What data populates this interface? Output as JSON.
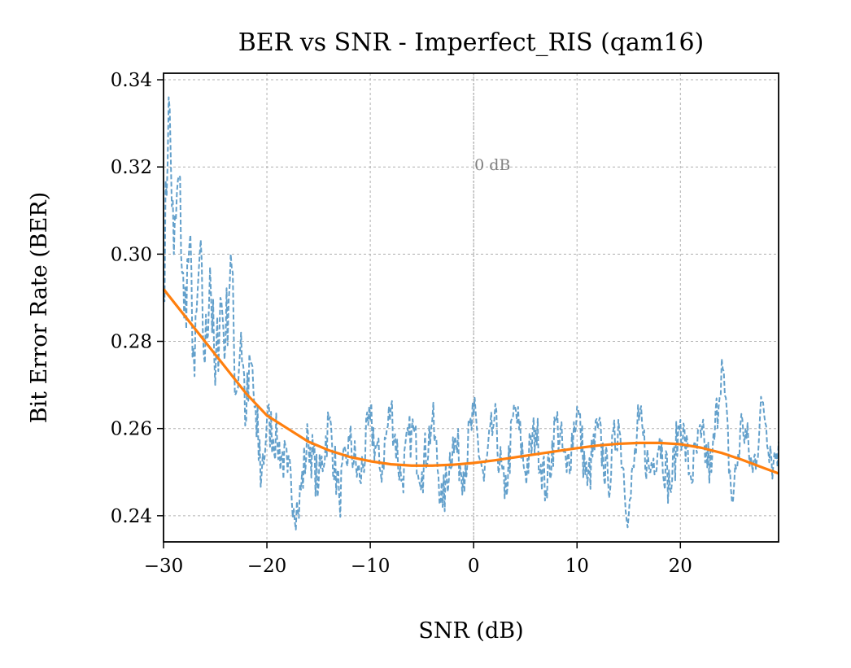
{
  "chart_data": {
    "type": "line",
    "title": "BER vs SNR - Imperfect_RIS (qam16)",
    "xlabel": "SNR (dB)",
    "ylabel": "Bit Error Rate (BER)",
    "xlim": [
      -30,
      29.5
    ],
    "ylim": [
      0.234,
      0.3415
    ],
    "xticks": [
      -30,
      -20,
      -10,
      0,
      10,
      20
    ],
    "xtick_labels": [
      "−30",
      "−20",
      "−10",
      "0",
      "10",
      "20"
    ],
    "yticks": [
      0.24,
      0.26,
      0.28,
      0.3,
      0.32,
      0.34
    ],
    "ytick_labels": [
      "0.24",
      "0.26",
      "0.28",
      "0.30",
      "0.32",
      "0.34"
    ],
    "grid": true,
    "annotation": {
      "text": "0 dB",
      "x": 0,
      "y": 0.32,
      "color": "#808080"
    },
    "vline": {
      "x": 0,
      "color": "#a0a0a0"
    },
    "series": [
      {
        "style": "dashed",
        "color": "#5b9bc8",
        "x_step": 0.1,
        "x_start": -30,
        "x_end": 29.5,
        "points": [
          [
            -30.0,
            0.29
          ],
          [
            -29.5,
            0.336
          ],
          [
            -29.0,
            0.3
          ],
          [
            -28.5,
            0.318
          ],
          [
            -28.0,
            0.285
          ],
          [
            -27.5,
            0.302
          ],
          [
            -27.0,
            0.272
          ],
          [
            -26.5,
            0.3
          ],
          [
            -26.0,
            0.275
          ],
          [
            -25.5,
            0.297
          ],
          [
            -25.0,
            0.27
          ],
          [
            -24.5,
            0.29
          ],
          [
            -24.0,
            0.28
          ],
          [
            -23.5,
            0.3
          ],
          [
            -23.0,
            0.268
          ],
          [
            -22.5,
            0.282
          ],
          [
            -22.0,
            0.262
          ],
          [
            -21.5,
            0.275
          ],
          [
            -21.0,
            0.258
          ],
          [
            -20.5,
            0.25
          ],
          [
            -20.0,
            0.262
          ],
          [
            -19.0,
            0.257
          ],
          [
            -18.0,
            0.25
          ],
          [
            -17.0,
            0.241
          ],
          [
            -16.0,
            0.258
          ],
          [
            -15.0,
            0.247
          ],
          [
            -14.0,
            0.262
          ],
          [
            -13.0,
            0.244
          ],
          [
            -12.0,
            0.257
          ],
          [
            -11.0,
            0.248
          ],
          [
            -10.0,
            0.262
          ],
          [
            -9.0,
            0.25
          ],
          [
            -8.0,
            0.265
          ],
          [
            -7.0,
            0.248
          ],
          [
            -6.0,
            0.26
          ],
          [
            -5.0,
            0.25
          ],
          [
            -4.0,
            0.262
          ],
          [
            -3.0,
            0.242
          ],
          [
            -2.0,
            0.258
          ],
          [
            -1.0,
            0.25
          ],
          [
            0.0,
            0.263
          ],
          [
            1.0,
            0.248
          ],
          [
            2.0,
            0.262
          ],
          [
            3.0,
            0.244
          ],
          [
            4.0,
            0.265
          ],
          [
            5.0,
            0.25
          ],
          [
            6.0,
            0.26
          ],
          [
            7.0,
            0.246
          ],
          [
            8.0,
            0.262
          ],
          [
            9.0,
            0.25
          ],
          [
            10.0,
            0.265
          ],
          [
            11.0,
            0.247
          ],
          [
            12.0,
            0.26
          ],
          [
            13.0,
            0.248
          ],
          [
            14.0,
            0.262
          ],
          [
            15.0,
            0.24
          ],
          [
            16.0,
            0.262
          ],
          [
            17.0,
            0.25
          ],
          [
            18.0,
            0.258
          ],
          [
            19.0,
            0.246
          ],
          [
            20.0,
            0.262
          ],
          [
            21.0,
            0.249
          ],
          [
            22.0,
            0.258
          ],
          [
            23.0,
            0.25
          ],
          [
            24.0,
            0.276
          ],
          [
            25.0,
            0.243
          ],
          [
            26.0,
            0.262
          ],
          [
            27.0,
            0.25
          ],
          [
            28.0,
            0.266
          ],
          [
            29.0,
            0.252
          ],
          [
            29.5,
            0.257
          ]
        ]
      },
      {
        "style": "solid",
        "color": "#ff7f0e",
        "points": [
          [
            -30.0,
            0.292
          ],
          [
            -28.0,
            0.286
          ],
          [
            -26.0,
            0.28
          ],
          [
            -24.0,
            0.274
          ],
          [
            -22.0,
            0.268
          ],
          [
            -20.0,
            0.263
          ],
          [
            -18.0,
            0.26
          ],
          [
            -16.0,
            0.257
          ],
          [
            -14.0,
            0.255
          ],
          [
            -12.0,
            0.2535
          ],
          [
            -10.0,
            0.2525
          ],
          [
            -8.0,
            0.2518
          ],
          [
            -6.0,
            0.2515
          ],
          [
            -4.0,
            0.2515
          ],
          [
            -2.0,
            0.2517
          ],
          [
            0.0,
            0.2521
          ],
          [
            2.0,
            0.2527
          ],
          [
            4.0,
            0.2534
          ],
          [
            6.0,
            0.2541
          ],
          [
            8.0,
            0.2548
          ],
          [
            10.0,
            0.2555
          ],
          [
            12.0,
            0.2561
          ],
          [
            14.0,
            0.2565
          ],
          [
            16.0,
            0.2567
          ],
          [
            18.0,
            0.2567
          ],
          [
            20.0,
            0.2564
          ],
          [
            22.0,
            0.2556
          ],
          [
            24.0,
            0.2544
          ],
          [
            26.0,
            0.2528
          ],
          [
            28.0,
            0.251
          ],
          [
            29.5,
            0.2497
          ]
        ]
      }
    ]
  }
}
